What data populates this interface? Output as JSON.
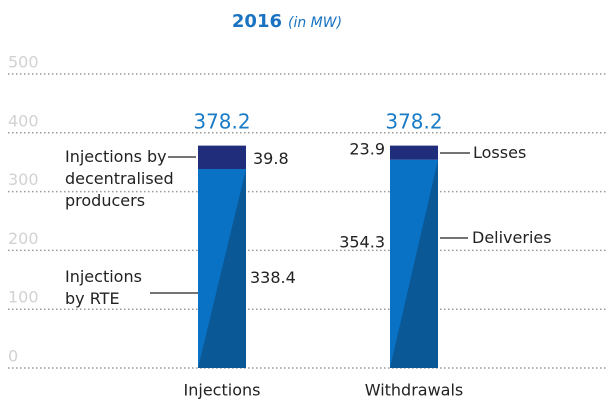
{
  "chart_data": {
    "type": "stacked_bar",
    "title": "2016",
    "subtitle": "(in MW)",
    "categories": [
      "Injections",
      "Withdrawals"
    ],
    "bars": [
      {
        "total": 378.2,
        "segments": [
          {
            "name": "Injections by RTE",
            "value": 338.4,
            "color": "#0a72c4"
          },
          {
            "name": "Injections by decentralised producers",
            "value": 39.8,
            "color": "#1f2d7b"
          }
        ]
      },
      {
        "total": 378.2,
        "segments": [
          {
            "name": "Deliveries",
            "value": 354.3,
            "color": "#0a72c4"
          },
          {
            "name": "Losses",
            "value": 23.9,
            "color": "#1f2d7b"
          }
        ]
      }
    ],
    "ylim": [
      0,
      500
    ],
    "yticks": [
      0,
      100,
      200,
      300,
      400,
      500
    ],
    "grid": true
  }
}
